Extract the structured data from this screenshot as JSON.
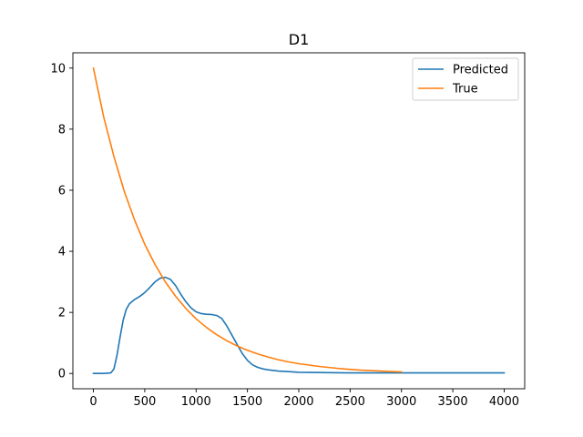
{
  "chart_data": {
    "type": "line",
    "title": "D1",
    "xlabel": "",
    "ylabel": "",
    "xlim": [
      -200,
      4200
    ],
    "ylim": [
      -0.5,
      10.5
    ],
    "xticks": [
      0,
      500,
      1000,
      1500,
      2000,
      2500,
      3000,
      3500,
      4000
    ],
    "yticks": [
      0,
      2,
      4,
      6,
      8,
      10
    ],
    "grid": false,
    "legend_position": "top-right",
    "series": [
      {
        "name": "Predicted",
        "color": "#1f77b4",
        "x": [
          0,
          100,
          170,
          200,
          230,
          260,
          290,
          320,
          350,
          400,
          450,
          500,
          550,
          600,
          650,
          700,
          750,
          800,
          850,
          900,
          950,
          1000,
          1050,
          1100,
          1150,
          1200,
          1250,
          1300,
          1350,
          1400,
          1450,
          1500,
          1550,
          1600,
          1650,
          1700,
          1800,
          1900,
          2000,
          2200,
          2500,
          3000,
          3500,
          4000
        ],
        "y": [
          0,
          0,
          0.02,
          0.15,
          0.6,
          1.2,
          1.75,
          2.1,
          2.28,
          2.42,
          2.52,
          2.65,
          2.82,
          3.0,
          3.12,
          3.15,
          3.08,
          2.88,
          2.6,
          2.35,
          2.15,
          2.02,
          1.96,
          1.94,
          1.93,
          1.9,
          1.8,
          1.55,
          1.25,
          0.95,
          0.65,
          0.43,
          0.28,
          0.2,
          0.15,
          0.12,
          0.08,
          0.06,
          0.04,
          0.03,
          0.02,
          0.02,
          0.02,
          0.02
        ]
      },
      {
        "name": "True",
        "color": "#ff7f0e",
        "x": [
          0,
          100,
          200,
          300,
          400,
          500,
          600,
          700,
          800,
          900,
          1000,
          1100,
          1200,
          1300,
          1400,
          1500,
          1600,
          1700,
          1800,
          1900,
          2000,
          2200,
          2400,
          2600,
          2800,
          3000
        ],
        "y": [
          10,
          8.4,
          7.1,
          5.97,
          5.03,
          4.23,
          3.57,
          3.0,
          2.53,
          2.13,
          1.79,
          1.51,
          1.27,
          1.07,
          0.9,
          0.76,
          0.64,
          0.54,
          0.45,
          0.38,
          0.32,
          0.23,
          0.16,
          0.11,
          0.08,
          0.05
        ]
      }
    ]
  }
}
